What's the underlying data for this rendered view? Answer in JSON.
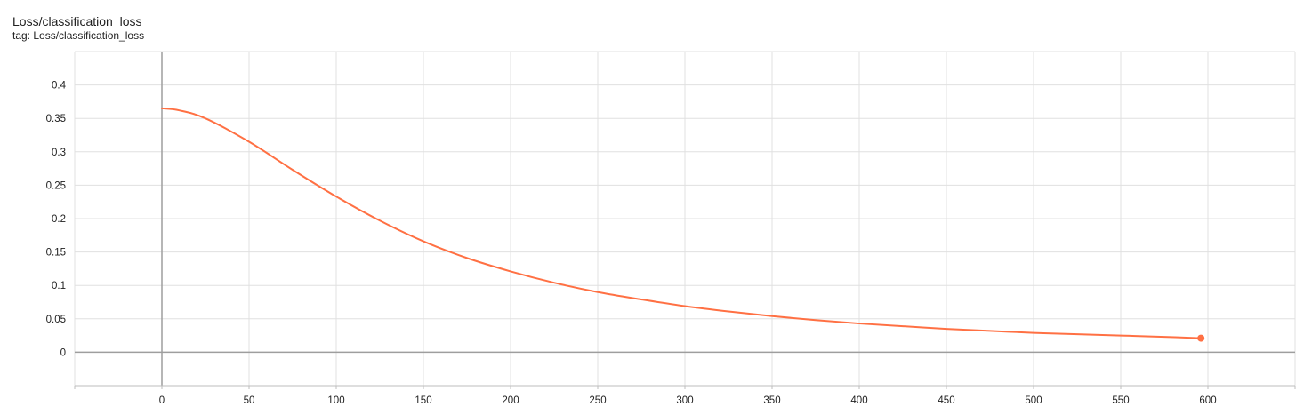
{
  "header": {
    "title": "Loss/classification_loss",
    "tag": "tag: Loss/classification_loss"
  },
  "colors": {
    "series": "#ff7043",
    "grid": "#e0e0e0",
    "zero_axis": "#9e9e9e"
  },
  "chart_data": {
    "type": "line",
    "title": "Loss/classification_loss",
    "xlabel": "",
    "ylabel": "",
    "xlim": [
      -50,
      650
    ],
    "ylim": [
      -0.05,
      0.45
    ],
    "x_ticks": [
      0,
      50,
      100,
      150,
      200,
      250,
      300,
      350,
      400,
      450,
      500,
      550,
      600
    ],
    "x_tick_labels": [
      "0",
      "50",
      "100",
      "150",
      "200",
      "250",
      "300",
      "350",
      "400",
      "450",
      "500",
      "550",
      "600"
    ],
    "y_ticks": [
      0,
      0.05,
      0.1,
      0.15,
      0.2,
      0.25,
      0.3,
      0.35,
      0.4
    ],
    "y_tick_labels": [
      "0",
      "0.05",
      "0.1",
      "0.15",
      "0.2",
      "0.25",
      "0.3",
      "0.35",
      "0.4"
    ],
    "grid": true,
    "legend": "none",
    "series": [
      {
        "x": [
          0,
          10,
          25,
          50,
          75,
          100,
          125,
          150,
          175,
          200,
          225,
          250,
          275,
          300,
          325,
          350,
          375,
          400,
          425,
          450,
          475,
          500,
          525,
          550,
          575,
          596
        ],
        "values": [
          0.365,
          0.362,
          0.35,
          0.315,
          0.273,
          0.233,
          0.197,
          0.166,
          0.141,
          0.121,
          0.104,
          0.09,
          0.079,
          0.069,
          0.061,
          0.054,
          0.048,
          0.043,
          0.039,
          0.035,
          0.032,
          0.029,
          0.027,
          0.025,
          0.023,
          0.021
        ],
        "end_marker": true
      }
    ]
  }
}
